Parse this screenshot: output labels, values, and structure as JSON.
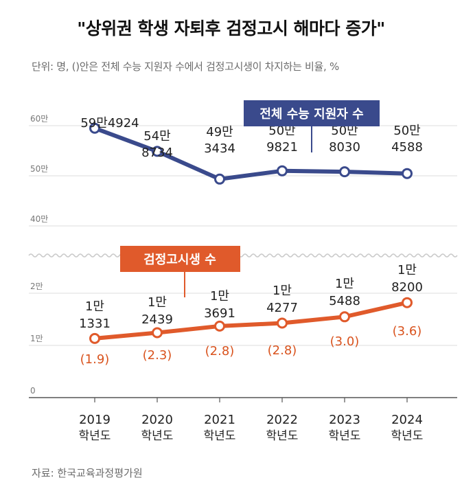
{
  "title": "\"상위권 학생 자퇴후 검정고시 해마다 증가\"",
  "unit_note": "단위: 명, ()안은 전체 수능 지원자 수에서 검정고시생이 차지하는 비율, %",
  "source": "자료: 한국교육과정평가원",
  "colors": {
    "total": "#3a4a8c",
    "ged": "#e05a2b",
    "ratio_text": "#d9531e",
    "axis": "#777777",
    "grid": "#dddddd"
  },
  "chart_data": {
    "type": "line",
    "axis_break": true,
    "categories": [
      {
        "year": "2019",
        "suffix": "학년도"
      },
      {
        "year": "2020",
        "suffix": "학년도"
      },
      {
        "year": "2021",
        "suffix": "학년도"
      },
      {
        "year": "2022",
        "suffix": "학년도"
      },
      {
        "year": "2023",
        "suffix": "학년도"
      },
      {
        "year": "2024",
        "suffix": "학년도"
      }
    ],
    "y_ticks_upper": [
      "60만",
      "50만",
      "40만"
    ],
    "y_ticks_lower": [
      "2만",
      "1만",
      "0"
    ],
    "series": [
      {
        "name": "전체 수능 지원자 수",
        "values": [
          594924,
          548734,
          493434,
          509821,
          508030,
          504588
        ],
        "labels": [
          [
            "59만4924"
          ],
          [
            "54만",
            "8734"
          ],
          [
            "49만",
            "3434"
          ],
          [
            "50만",
            "9821"
          ],
          [
            "50만",
            "8030"
          ],
          [
            "50만",
            "4588"
          ]
        ]
      },
      {
        "name": "검정고시생 수",
        "values": [
          11331,
          12439,
          13691,
          14277,
          15488,
          18200
        ],
        "labels": [
          [
            "1만",
            "1331"
          ],
          [
            "1만",
            "2439"
          ],
          [
            "1만",
            "3691"
          ],
          [
            "1만",
            "4277"
          ],
          [
            "1만",
            "5488"
          ],
          [
            "1만",
            "8200"
          ]
        ],
        "ratio_labels": [
          "(1.9)",
          "(2.3)",
          "(2.8)",
          "(2.8)",
          "(3.0)",
          "(3.6)"
        ],
        "ratio_values": [
          1.9,
          2.3,
          2.8,
          2.8,
          3.0,
          3.6
        ]
      }
    ]
  }
}
